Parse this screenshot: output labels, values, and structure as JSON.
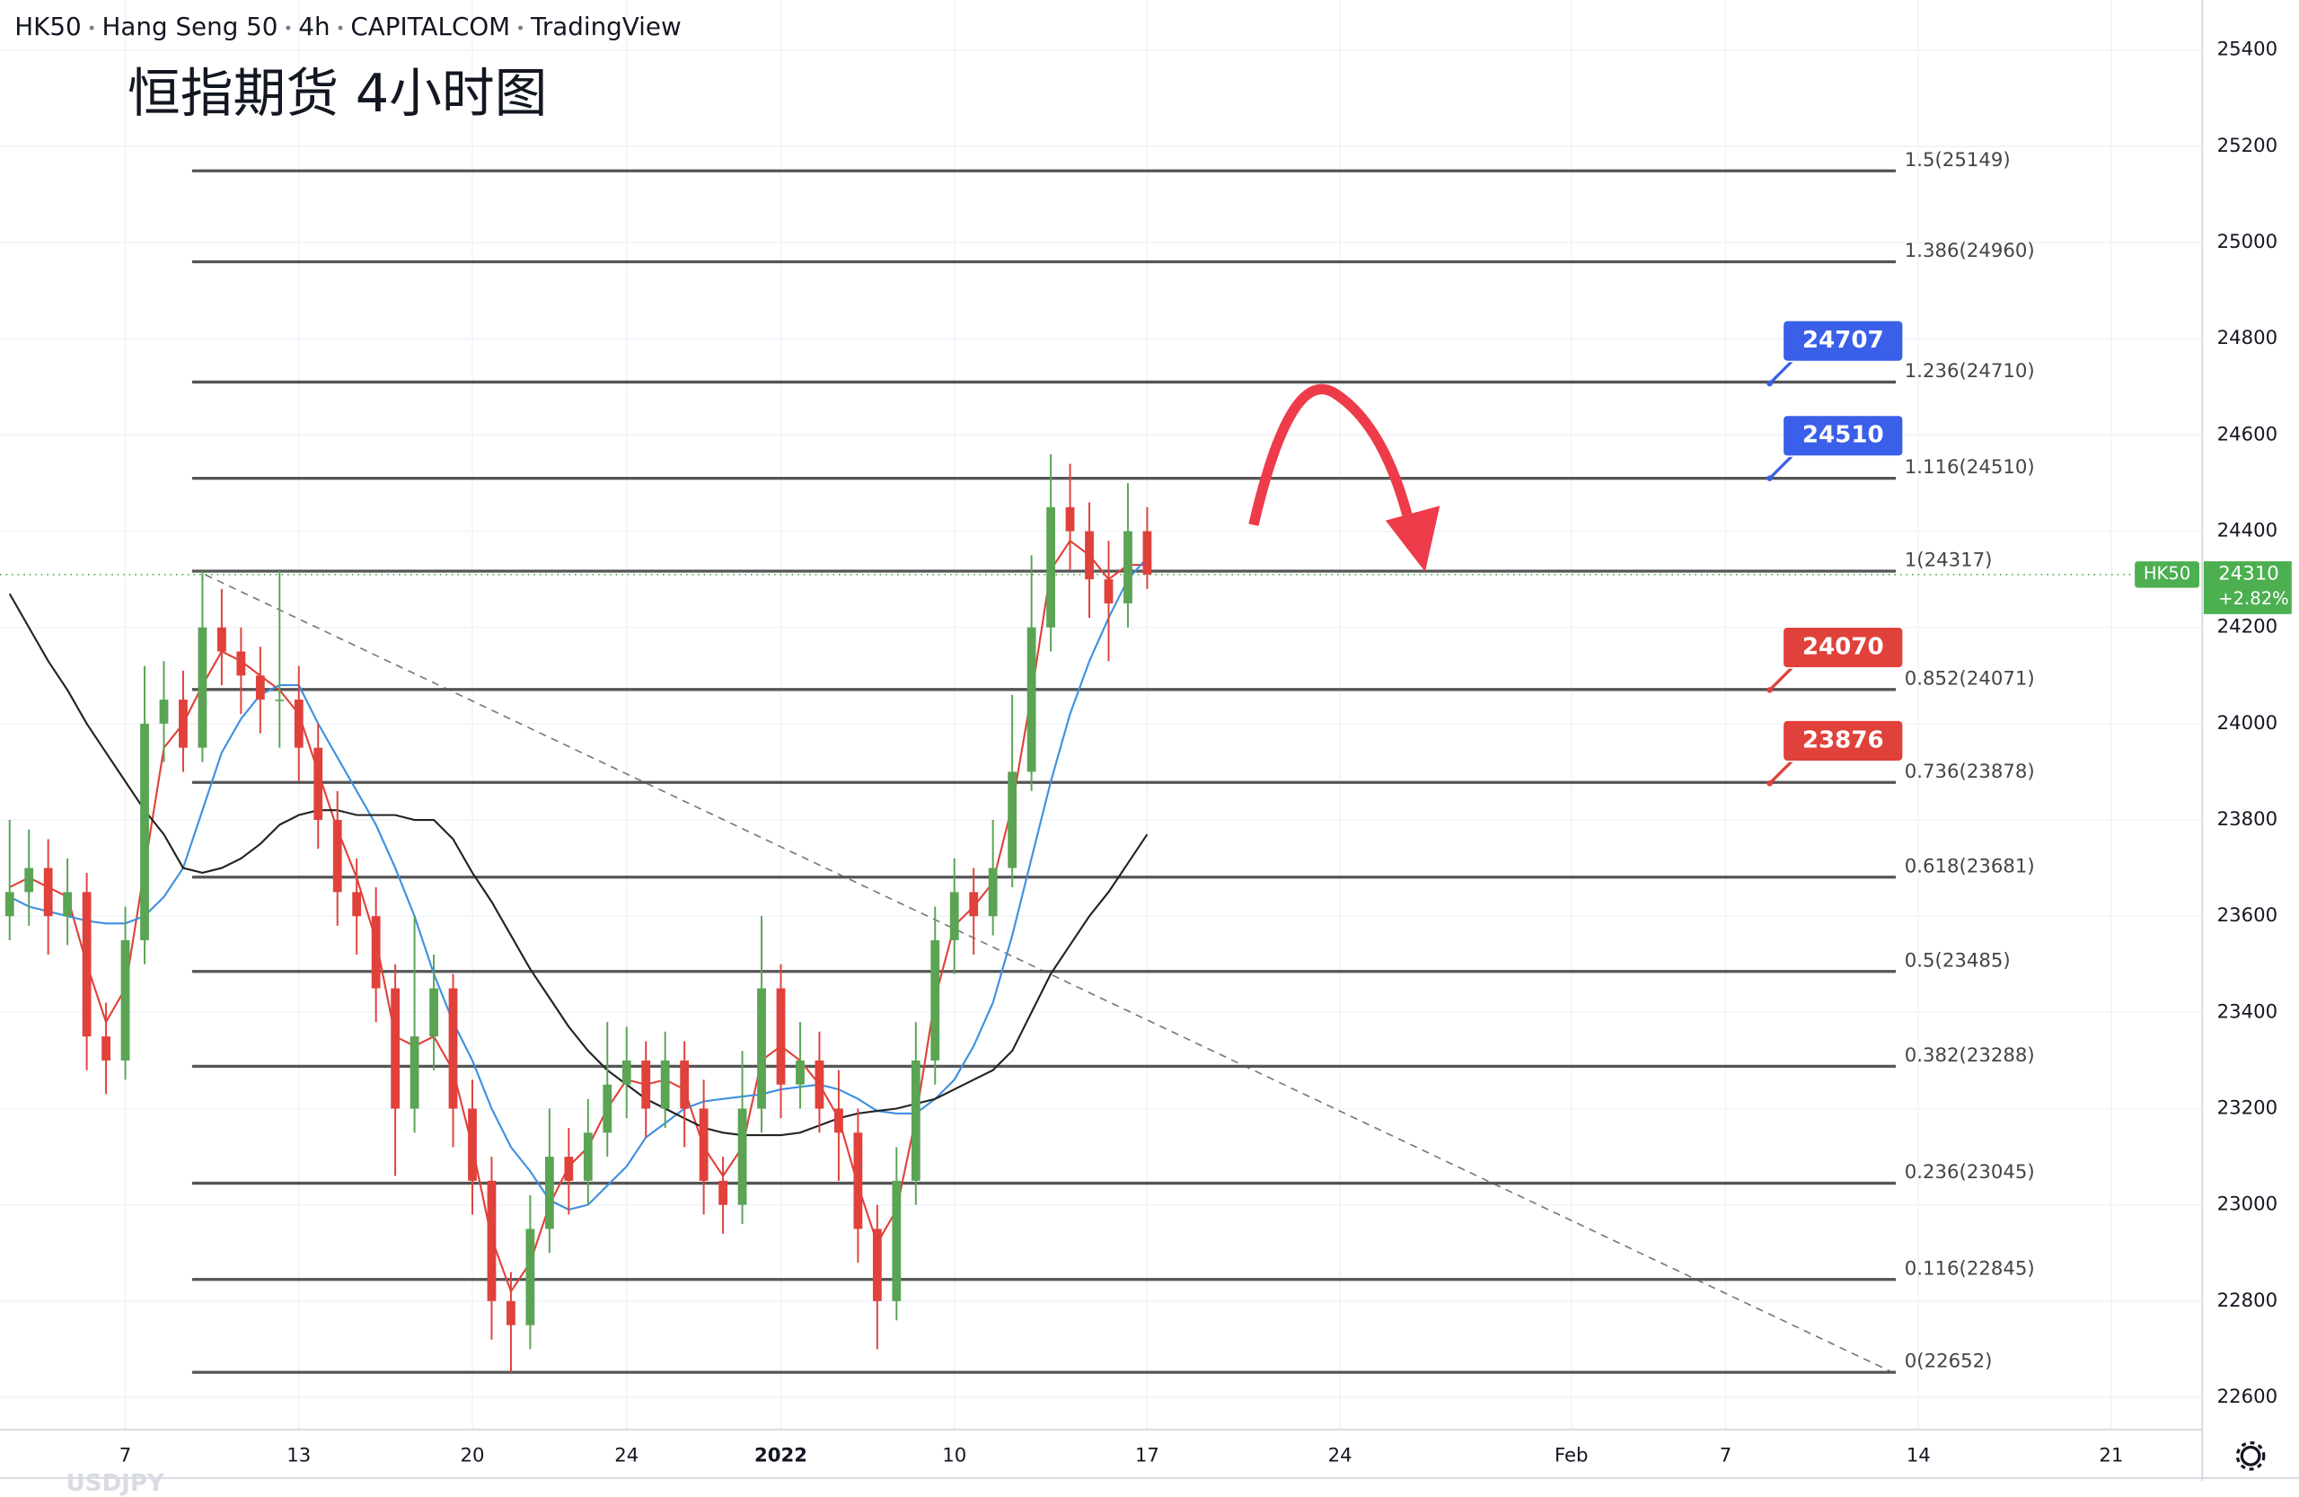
{
  "chart_data": {
    "type": "candlestick",
    "header": [
      "HK50",
      "Hang Seng 50",
      "4h",
      "CAPITALCOM",
      "TradingView"
    ],
    "subtitle": "恒指期货 4小时图",
    "watermark": "USDJPY",
    "ylim": [
      22533,
      25504
    ],
    "yticks": [
      22600,
      22800,
      23000,
      23200,
      23400,
      23600,
      23800,
      24000,
      24200,
      24400,
      24600,
      24800,
      25000,
      25200,
      25400
    ],
    "categories": [
      null,
      null,
      null,
      null,
      null,
      null,
      "7",
      null,
      null,
      null,
      null,
      null,
      null,
      null,
      null,
      "13",
      null,
      null,
      null,
      null,
      null,
      null,
      null,
      null,
      "20",
      null,
      null,
      null,
      null,
      null,
      null,
      null,
      "24",
      null,
      null,
      null,
      null,
      null,
      null,
      null,
      "2022",
      null,
      null,
      null,
      null,
      null,
      null,
      null,
      null,
      "10",
      null,
      null,
      null,
      null,
      null,
      null,
      null,
      null,
      null,
      "17",
      null,
      null,
      null,
      null,
      null,
      null,
      null,
      null,
      null,
      "24",
      null,
      null,
      null,
      null,
      null,
      null,
      null,
      null,
      null,
      null,
      null,
      "Feb",
      null,
      null,
      null,
      null,
      null,
      null,
      null,
      "7",
      null,
      null,
      null,
      null,
      null,
      null,
      null,
      null,
      null,
      "14",
      null,
      null,
      null,
      null,
      null,
      null,
      null,
      null,
      null,
      "21",
      null,
      null,
      null,
      null
    ],
    "up_color": "#5aa454",
    "down_color": "#e0413a",
    "ohlc": [
      [
        23600,
        23800,
        23550,
        23650
      ],
      [
        23650,
        23780,
        23580,
        23700
      ],
      [
        23700,
        23760,
        23520,
        23600
      ],
      [
        23600,
        23720,
        23540,
        23650
      ],
      [
        23650,
        23690,
        23280,
        23350
      ],
      [
        23350,
        23420,
        23230,
        23300
      ],
      [
        23300,
        23620,
        23260,
        23550
      ],
      [
        23550,
        24120,
        23500,
        24000
      ],
      [
        24000,
        24130,
        23920,
        24050
      ],
      [
        24050,
        24110,
        23900,
        23950
      ],
      [
        23950,
        24317,
        23920,
        24200
      ],
      [
        24200,
        24280,
        24080,
        24150
      ],
      [
        24150,
        24200,
        24020,
        24100
      ],
      [
        24100,
        24160,
        23980,
        24050
      ],
      [
        24050,
        24317,
        23950,
        24050
      ],
      [
        24050,
        24120,
        23880,
        23950
      ],
      [
        23950,
        24000,
        23740,
        23800
      ],
      [
        23800,
        23860,
        23580,
        23650
      ],
      [
        23650,
        23720,
        23520,
        23600
      ],
      [
        23600,
        23660,
        23380,
        23450
      ],
      [
        23450,
        23500,
        23060,
        23200
      ],
      [
        23200,
        23600,
        23150,
        23350
      ],
      [
        23350,
        23520,
        23280,
        23450
      ],
      [
        23450,
        23480,
        23120,
        23200
      ],
      [
        23200,
        23260,
        22980,
        23050
      ],
      [
        23050,
        23100,
        22720,
        22800
      ],
      [
        22800,
        22860,
        22652,
        22750
      ],
      [
        22750,
        23020,
        22700,
        22950
      ],
      [
        22950,
        23200,
        22900,
        23100
      ],
      [
        23100,
        23160,
        22980,
        23050
      ],
      [
        23050,
        23220,
        23000,
        23150
      ],
      [
        23150,
        23380,
        23100,
        23250
      ],
      [
        23250,
        23370,
        23180,
        23300
      ],
      [
        23300,
        23340,
        23140,
        23200
      ],
      [
        23200,
        23360,
        23160,
        23300
      ],
      [
        23300,
        23340,
        23120,
        23200
      ],
      [
        23200,
        23260,
        22980,
        23050
      ],
      [
        23050,
        23100,
        22940,
        23000
      ],
      [
        23000,
        23320,
        22960,
        23200
      ],
      [
        23200,
        23600,
        23150,
        23450
      ],
      [
        23450,
        23500,
        23180,
        23250
      ],
      [
        23250,
        23380,
        23200,
        23300
      ],
      [
        23300,
        23360,
        23150,
        23200
      ],
      [
        23200,
        23280,
        23050,
        23150
      ],
      [
        23150,
        23200,
        22880,
        22950
      ],
      [
        22950,
        23000,
        22700,
        22800
      ],
      [
        22800,
        23120,
        22760,
        23050
      ],
      [
        23050,
        23380,
        23000,
        23300
      ],
      [
        23300,
        23620,
        23250,
        23550
      ],
      [
        23550,
        23720,
        23480,
        23650
      ],
      [
        23650,
        23700,
        23520,
        23600
      ],
      [
        23600,
        23800,
        23560,
        23700
      ],
      [
        23700,
        24060,
        23660,
        23900
      ],
      [
        23900,
        24350,
        23860,
        24200
      ],
      [
        24200,
        24560,
        24150,
        24450
      ],
      [
        24450,
        24540,
        24320,
        24400
      ],
      [
        24400,
        24460,
        24220,
        24300
      ],
      [
        24300,
        24380,
        24130,
        24250
      ],
      [
        24250,
        24500,
        24200,
        24400
      ],
      [
        24400,
        24450,
        24280,
        24310
      ],
      null,
      null,
      null,
      null,
      null,
      null,
      null,
      null,
      null,
      null,
      null,
      null,
      null,
      null,
      null,
      null,
      null,
      null,
      null,
      null,
      null,
      null,
      null,
      null,
      null,
      null,
      null,
      null,
      null,
      null,
      null,
      null,
      null,
      null,
      null,
      null,
      null,
      null,
      null,
      null,
      null,
      null,
      null,
      null,
      null,
      null,
      null,
      null,
      null,
      null,
      null,
      null,
      null,
      null
    ],
    "moving_averages": [
      {
        "color": "#e0413a",
        "values": [
          23660,
          23680,
          23660,
          23640,
          23500,
          23380,
          23450,
          23700,
          23950,
          24000,
          24080,
          24150,
          24130,
          24100,
          24070,
          24020,
          23900,
          23780,
          23680,
          23550,
          23350,
          23330,
          23350,
          23280,
          23120,
          22930,
          22820,
          22880,
          23000,
          23080,
          23120,
          23200,
          23260,
          23250,
          23260,
          23240,
          23120,
          23060,
          23120,
          23300,
          23330,
          23300,
          23250,
          23180,
          23040,
          22920,
          22990,
          23180,
          23430,
          23580,
          23620,
          23670,
          23830,
          24060,
          24320,
          24380,
          24350,
          24300,
          24330,
          24330,
          null,
          null,
          null,
          null,
          null,
          null,
          null,
          null,
          null,
          null,
          null,
          null,
          null,
          null,
          null,
          null,
          null,
          null,
          null,
          null,
          null,
          null,
          null,
          null,
          null,
          null,
          null,
          null,
          null,
          null,
          null,
          null,
          null,
          null,
          null,
          null,
          null,
          null,
          null,
          null,
          null,
          null,
          null,
          null,
          null,
          null,
          null,
          null,
          null,
          null,
          null,
          null,
          null,
          null
        ]
      },
      {
        "color": "#3d8fe0",
        "values": [
          23640,
          23620,
          23610,
          23600,
          23590,
          23585,
          23585,
          23600,
          23640,
          23700,
          23820,
          23940,
          24010,
          24060,
          24080,
          24080,
          24000,
          23930,
          23860,
          23790,
          23700,
          23600,
          23480,
          23380,
          23300,
          23200,
          23120,
          23070,
          23010,
          22990,
          23000,
          23040,
          23080,
          23140,
          23170,
          23200,
          23215,
          23220,
          23225,
          23230,
          23240,
          23245,
          23250,
          23240,
          23220,
          23195,
          23190,
          23190,
          23220,
          23260,
          23330,
          23420,
          23560,
          23720,
          23880,
          24020,
          24130,
          24220,
          24300,
          24345,
          null,
          null,
          null,
          null,
          null,
          null,
          null,
          null,
          null,
          null,
          null,
          null,
          null,
          null,
          null,
          null,
          null,
          null,
          null,
          null,
          null,
          null,
          null,
          null,
          null,
          null,
          null,
          null,
          null,
          null,
          null,
          null,
          null,
          null,
          null,
          null,
          null,
          null,
          null,
          null,
          null,
          null,
          null,
          null,
          null,
          null,
          null,
          null,
          null,
          null,
          null,
          null,
          null,
          null
        ]
      },
      {
        "color": "#222222",
        "values": [
          24270,
          24200,
          24130,
          24070,
          24000,
          23940,
          23880,
          23820,
          23770,
          23700,
          23690,
          23700,
          23720,
          23750,
          23790,
          23810,
          23820,
          23820,
          23810,
          23810,
          23810,
          23800,
          23800,
          23760,
          23690,
          23630,
          23560,
          23490,
          23430,
          23370,
          23320,
          23280,
          23250,
          23220,
          23200,
          23180,
          23160,
          23150,
          23145,
          23145,
          23145,
          23150,
          23165,
          23180,
          23190,
          23195,
          23200,
          23210,
          23220,
          23240,
          23260,
          23280,
          23320,
          23400,
          23480,
          23540,
          23600,
          23650,
          23710,
          23770,
          null,
          null,
          null,
          null,
          null,
          null,
          null,
          null,
          null,
          null,
          null,
          null,
          null,
          null,
          null,
          null,
          null,
          null,
          null,
          null,
          null,
          null,
          null,
          null,
          null,
          null,
          null,
          null,
          null,
          null,
          null,
          null,
          null,
          null,
          null,
          null,
          null,
          null,
          null,
          null,
          null,
          null,
          null,
          null,
          null,
          null,
          null,
          null,
          null,
          null,
          null,
          null,
          null,
          null
        ]
      }
    ],
    "fib_levels": [
      {
        "label": "1.5(25149)",
        "value": 25149
      },
      {
        "label": "1.386(24960)",
        "value": 24960
      },
      {
        "label": "1.236(24710)",
        "value": 24710
      },
      {
        "label": "1.116(24510)",
        "value": 24510
      },
      {
        "label": "1(24317)",
        "value": 24317
      },
      {
        "label": "0.852(24071)",
        "value": 24071
      },
      {
        "label": "0.736(23878)",
        "value": 23878
      },
      {
        "label": "0.618(23681)",
        "value": 23681
      },
      {
        "label": "0.5(23485)",
        "value": 23485
      },
      {
        "label": "0.382(23288)",
        "value": 23288
      },
      {
        "label": "0.236(23045)",
        "value": 23045
      },
      {
        "label": "0.116(22845)",
        "value": 22845
      },
      {
        "label": "0(22652)",
        "value": 22652
      }
    ],
    "price_tags": [
      {
        "value": 24707,
        "color": "#3a5fe8"
      },
      {
        "value": 24510,
        "color": "#3a5fe8"
      },
      {
        "value": 24070,
        "color": "#e0413a"
      },
      {
        "value": 23876,
        "color": "#e0413a"
      }
    ],
    "last_price": {
      "symbol": "HK50",
      "value": 24310,
      "change": "+2.82%",
      "color": "#4caf50"
    }
  }
}
